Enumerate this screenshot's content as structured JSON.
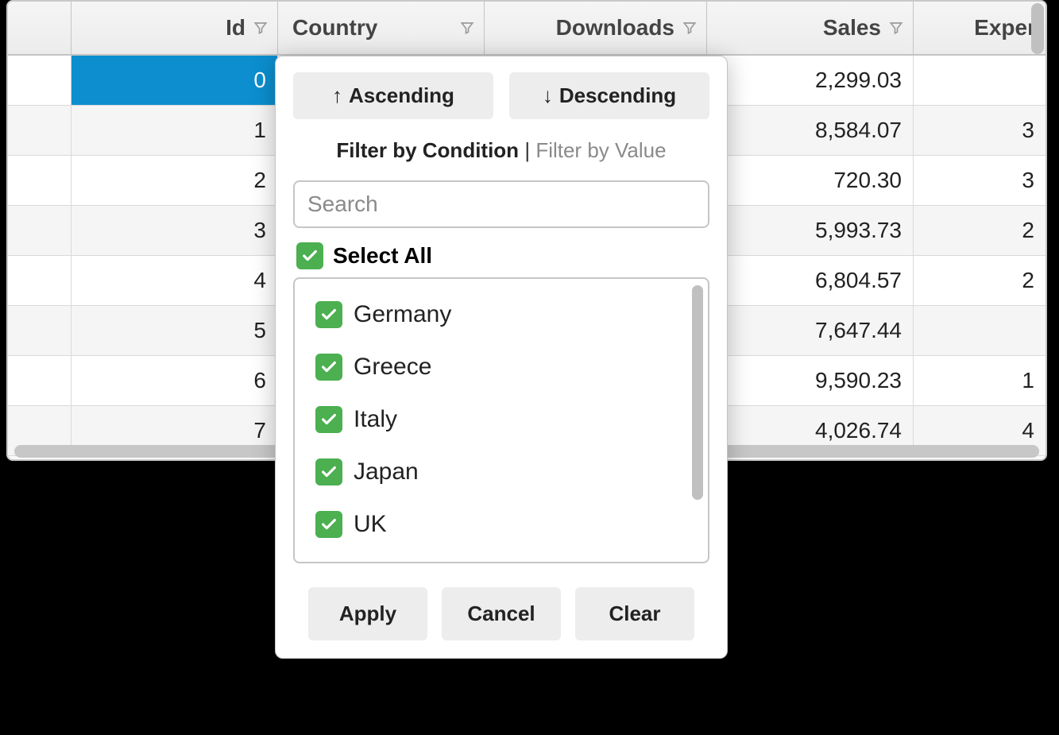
{
  "grid": {
    "columns": [
      {
        "label": "",
        "filterable": false,
        "align": "right"
      },
      {
        "label": "Id",
        "filterable": true,
        "align": "right"
      },
      {
        "label": "Country",
        "filterable": true,
        "align": "left"
      },
      {
        "label": "Downloads",
        "filterable": true,
        "align": "right"
      },
      {
        "label": "Sales",
        "filterable": true,
        "align": "right"
      },
      {
        "label": "Expenses",
        "filterable": true,
        "align": "right",
        "truncated_label": "Exper"
      }
    ],
    "rows": [
      {
        "selectedCol": 1,
        "cells": [
          "",
          "0",
          "",
          "",
          "2,299.03",
          ""
        ]
      },
      {
        "cells": [
          "",
          "1",
          "",
          "",
          "8,584.07",
          "3"
        ]
      },
      {
        "cells": [
          "",
          "2",
          "",
          "",
          "720.30",
          "3"
        ]
      },
      {
        "cells": [
          "",
          "3",
          "",
          "",
          "5,993.73",
          "2"
        ]
      },
      {
        "cells": [
          "",
          "4",
          "",
          "",
          "6,804.57",
          "2"
        ]
      },
      {
        "cells": [
          "",
          "5",
          "",
          "",
          "7,647.44",
          ""
        ]
      },
      {
        "cells": [
          "",
          "6",
          "",
          "",
          "9,590.23",
          "1"
        ]
      },
      {
        "cells": [
          "",
          "7",
          "",
          "",
          "4,026.74",
          "4"
        ]
      }
    ],
    "colors": {
      "header_bg": "#ececec",
      "border": "#c8c8c8",
      "selected_bg": "#0c8ecf",
      "selected_fg": "#ffffff",
      "text": "#222222"
    }
  },
  "popup": {
    "sort_asc_label": "Ascending",
    "sort_desc_label": "Descending",
    "mode_active": "Filter by Condition",
    "mode_separator": "|",
    "mode_inactive": "Filter by Value",
    "search_placeholder": "Search",
    "select_all_label": "Select All",
    "select_all_checked": true,
    "values": [
      {
        "label": "Germany",
        "checked": true
      },
      {
        "label": "Greece",
        "checked": true
      },
      {
        "label": "Italy",
        "checked": true
      },
      {
        "label": "Japan",
        "checked": true
      },
      {
        "label": "UK",
        "checked": true
      }
    ],
    "apply_label": "Apply",
    "cancel_label": "Cancel",
    "clear_label": "Clear",
    "checkbox_color": "#4caf50"
  }
}
